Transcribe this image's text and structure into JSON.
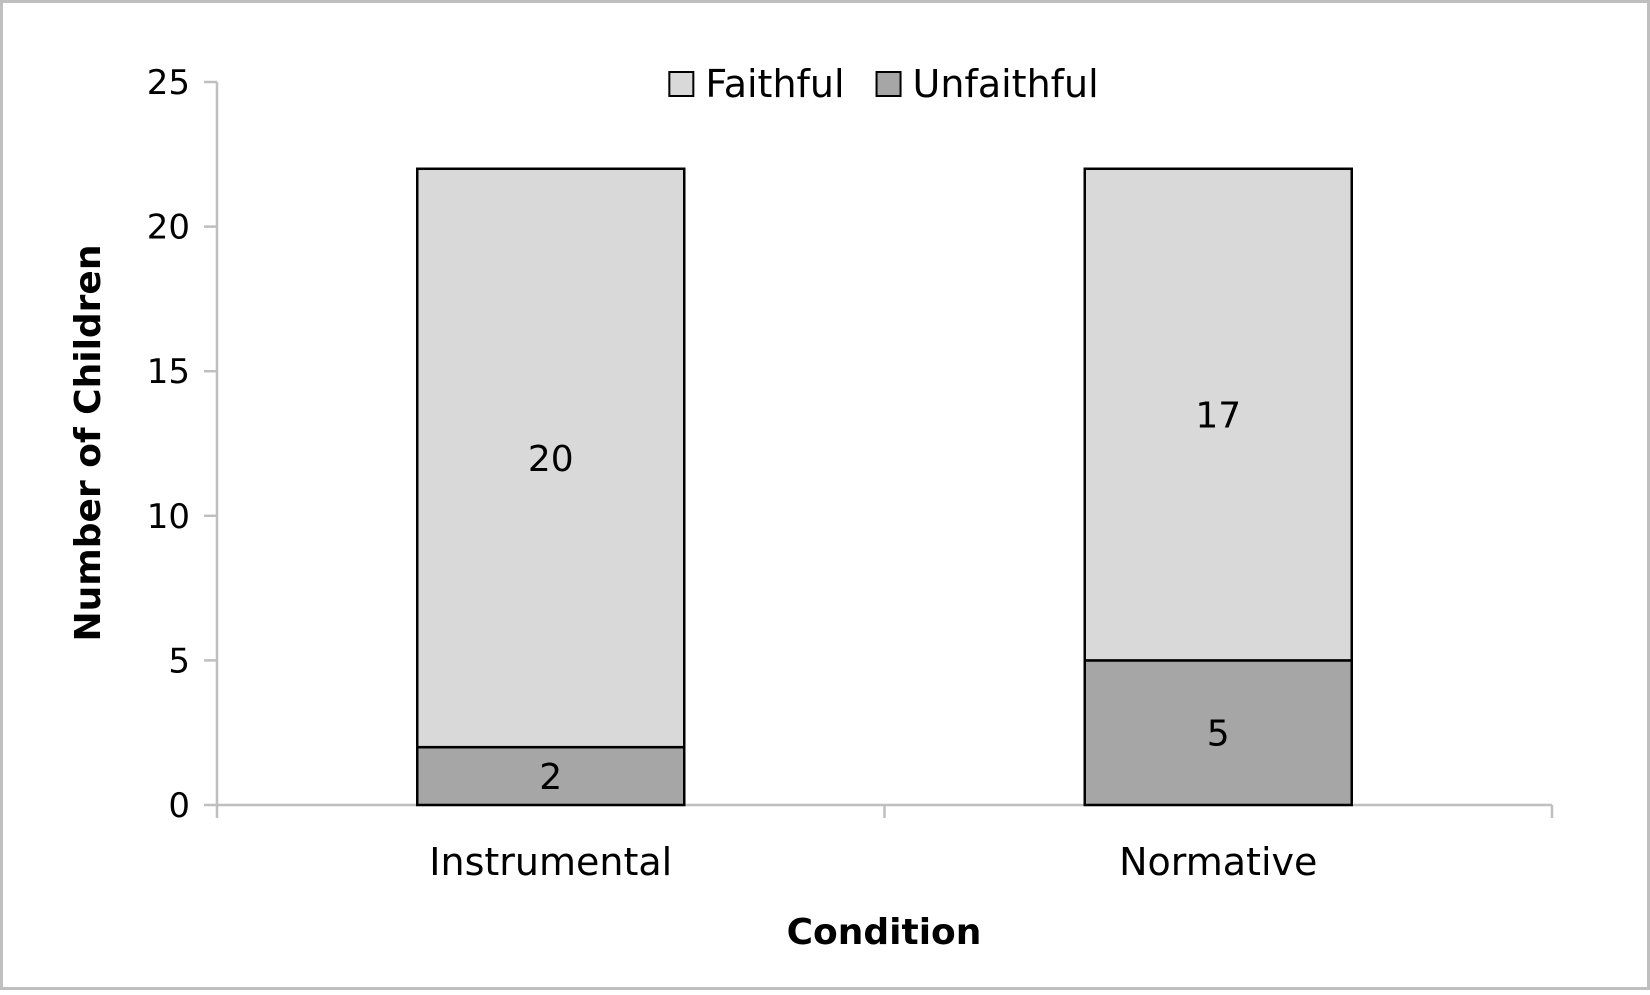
{
  "chart_data": {
    "type": "bar",
    "stacked": true,
    "categories": [
      "Instrumental",
      "Normative"
    ],
    "series": [
      {
        "name": "Unfaithful",
        "values": [
          2,
          5
        ],
        "color": "#a6a6a6"
      },
      {
        "name": "Faithful",
        "values": [
          20,
          17
        ],
        "color": "#d9d9d9"
      }
    ],
    "data_labels": true,
    "title": "",
    "xlabel": "Condition",
    "ylabel": "Number of Children",
    "ylim": [
      0,
      25
    ],
    "yticks": [
      0,
      5,
      10,
      15,
      20,
      25
    ],
    "legend_order": [
      "Faithful",
      "Unfaithful"
    ],
    "legend_position": "top-center",
    "grid": false,
    "frame_color": "#bfbfbf",
    "axis_color": "#bfbfbf",
    "bar_outline_color": "#000000"
  }
}
